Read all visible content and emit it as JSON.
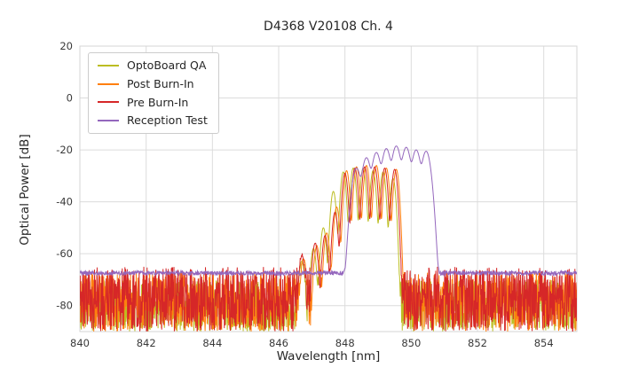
{
  "chart_data": {
    "type": "line",
    "title": "D4368 V20108 Ch. 4",
    "xlabel": "Wavelength [nm]",
    "ylabel": "Optical Power [dB]",
    "xlim": [
      840,
      855
    ],
    "ylim": [
      -90,
      20
    ],
    "xticks": [
      840,
      842,
      844,
      846,
      848,
      850,
      852,
      854
    ],
    "yticks": [
      20,
      0,
      -20,
      -40,
      -60,
      -80
    ],
    "grid": true,
    "legend_position": "upper-left",
    "sample_step_nm": 0.01,
    "series": [
      {
        "name": "OptoBoard QA",
        "color": "#bcbd22",
        "noise_floor_db": {
          "min": -90,
          "max": -70
        },
        "mode_sigma_nm": 0.065,
        "peaks": [
          [
            846.7,
            -63
          ],
          [
            847.05,
            -58
          ],
          [
            847.35,
            -50
          ],
          [
            847.65,
            -36
          ],
          [
            847.95,
            -28.5
          ],
          [
            848.25,
            -27
          ],
          [
            848.55,
            -27
          ],
          [
            848.85,
            -28
          ],
          [
            849.15,
            -28.5
          ],
          [
            849.45,
            -31
          ]
        ]
      },
      {
        "name": "Post Burn-In",
        "color": "#ff7f0e",
        "noise_floor_db": {
          "min": -90,
          "max": -67
        },
        "mode_sigma_nm": 0.065,
        "peaks": [
          [
            846.75,
            -62
          ],
          [
            847.15,
            -57
          ],
          [
            847.45,
            -52
          ],
          [
            847.75,
            -42
          ],
          [
            848.05,
            -28
          ],
          [
            848.35,
            -26.5
          ],
          [
            848.65,
            -26
          ],
          [
            848.95,
            -26
          ],
          [
            849.25,
            -27
          ],
          [
            849.55,
            -27.5
          ]
        ]
      },
      {
        "name": "Pre Burn-In",
        "color": "#d62728",
        "noise_floor_db": {
          "min": -90,
          "max": -65
        },
        "mode_sigma_nm": 0.065,
        "peaks": [
          [
            846.7,
            -61
          ],
          [
            847.1,
            -56
          ],
          [
            847.4,
            -53
          ],
          [
            847.7,
            -44
          ],
          [
            848.0,
            -29
          ],
          [
            848.3,
            -27
          ],
          [
            848.6,
            -26.5
          ],
          [
            848.9,
            -26.5
          ],
          [
            849.2,
            -27
          ],
          [
            849.5,
            -27.5
          ]
        ]
      },
      {
        "name": "Reception Test",
        "color": "#9467bd",
        "noise_floor_db": {
          "min": -68.3,
          "max": -66.6
        },
        "mode_sigma_nm": 0.11,
        "peaks": [
          [
            848.35,
            -27
          ],
          [
            848.65,
            -23
          ],
          [
            848.95,
            -21
          ],
          [
            849.25,
            -19.5
          ],
          [
            849.55,
            -18.5
          ],
          [
            849.85,
            -19
          ],
          [
            850.15,
            -20
          ],
          [
            850.45,
            -20.5
          ]
        ]
      }
    ]
  }
}
